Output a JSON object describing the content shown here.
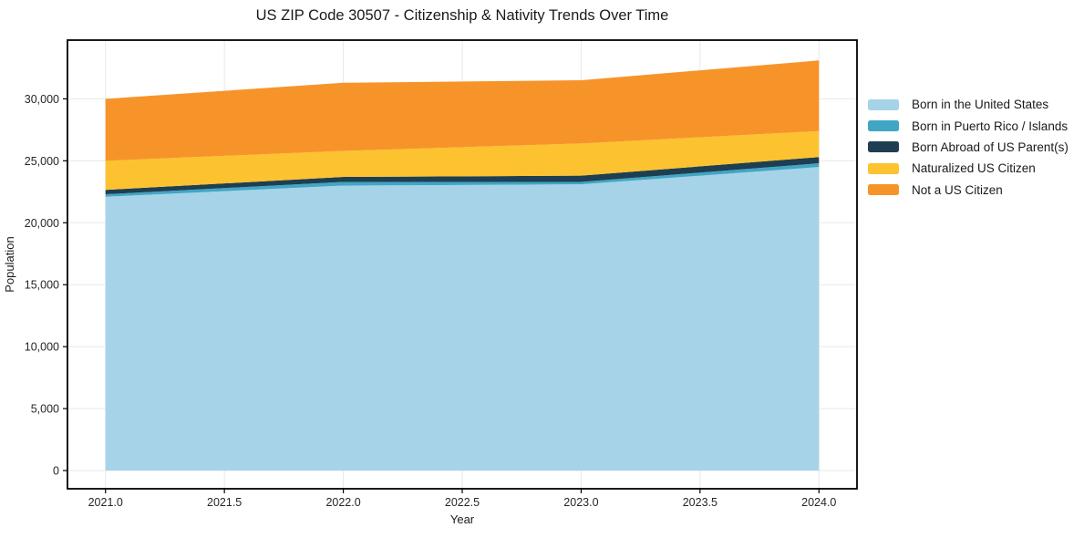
{
  "chart_data": {
    "type": "area",
    "stacked": true,
    "title": "US ZIP Code 30507 - Citizenship & Nativity Trends Over Time",
    "xlabel": "Year",
    "ylabel": "Population",
    "x": [
      2021,
      2022,
      2023,
      2024
    ],
    "series": [
      {
        "name": "Born in the United States",
        "color": "#a6d3e8",
        "values": [
          22100,
          23000,
          23100,
          24500
        ]
      },
      {
        "name": "Born in Puerto Rico / Islands",
        "color": "#41a6c4",
        "values": [
          200,
          300,
          200,
          300
        ]
      },
      {
        "name": "Born Abroad of US Parent(s)",
        "color": "#1e3f52",
        "values": [
          350,
          400,
          500,
          500
        ]
      },
      {
        "name": "Naturalized US Citizen",
        "color": "#fdc22f",
        "values": [
          2350,
          2100,
          2600,
          2100
        ]
      },
      {
        "name": "Not a US Citizen",
        "color": "#f79429",
        "values": [
          5000,
          5500,
          5100,
          5700
        ]
      }
    ],
    "totals": [
      30000,
      31300,
      31500,
      33100
    ],
    "xlim": [
      2020.84,
      2024.16
    ],
    "ylim": [
      -1470,
      34740
    ],
    "xticks": {
      "values": [
        2021.0,
        2021.5,
        2022.0,
        2022.5,
        2023.0,
        2023.5,
        2024.0
      ],
      "labels": [
        "2021.0",
        "2021.5",
        "2022.0",
        "2022.5",
        "2023.0",
        "2023.5",
        "2024.0"
      ]
    },
    "yticks": {
      "values": [
        0,
        5000,
        10000,
        15000,
        20000,
        25000,
        30000
      ],
      "labels": [
        "0",
        "5,000",
        "10,000",
        "15,000",
        "20,000",
        "25,000",
        "30,000"
      ]
    },
    "grid": true,
    "grid_color": "#e8e8e8",
    "frame_color": "#000000",
    "tick_label_color": "#262626",
    "legend_position": "right"
  }
}
